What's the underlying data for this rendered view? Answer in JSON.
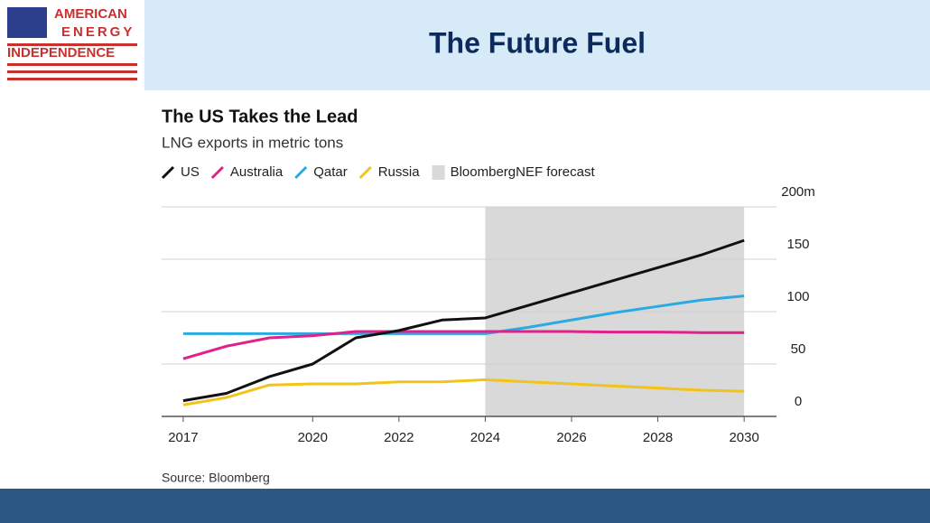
{
  "logo": {
    "lines": [
      "AMERICAN",
      "ENERGY",
      "INDEPENDENCE"
    ]
  },
  "header": {
    "title": "The Future Fuel"
  },
  "chart_data": {
    "type": "line",
    "title": "The US Takes the Lead",
    "subtitle": "LNG exports in metric tons",
    "x": [
      2017,
      2018,
      2019,
      2020,
      2021,
      2022,
      2023,
      2024,
      2025,
      2026,
      2027,
      2028,
      2029,
      2030
    ],
    "xlim": [
      2016.5,
      2030.75
    ],
    "xticks": [
      2017,
      2020,
      2022,
      2024,
      2026,
      2028,
      2030
    ],
    "ylim": [
      0,
      200
    ],
    "yticks": [
      0,
      50,
      100,
      150,
      {
        "value": 200,
        "label": "200m"
      }
    ],
    "grid": true,
    "forecast": {
      "label": "BloombergNEF forecast",
      "start": 2024,
      "end": 2030,
      "color": "#d9d9d9"
    },
    "series": [
      {
        "name": "US",
        "color": "#111111",
        "values": [
          15,
          22,
          38,
          50,
          75,
          82,
          92,
          94,
          106,
          118,
          130,
          142,
          154,
          168
        ]
      },
      {
        "name": "Australia",
        "color": "#e0218a",
        "values": [
          55,
          67,
          75,
          77,
          81,
          81,
          81,
          81,
          81,
          81,
          80.5,
          80.5,
          80,
          80
        ]
      },
      {
        "name": "Qatar",
        "color": "#29abe2",
        "values": [
          79,
          79,
          79,
          79,
          79,
          79,
          79,
          79,
          85,
          92,
          99,
          105,
          111,
          115
        ]
      },
      {
        "name": "Russia",
        "color": "#f2c41a",
        "values": [
          11,
          18,
          30,
          31,
          31,
          33,
          33,
          35,
          33,
          31,
          29,
          27,
          25,
          24
        ]
      }
    ],
    "source": "Source: Bloomberg"
  }
}
